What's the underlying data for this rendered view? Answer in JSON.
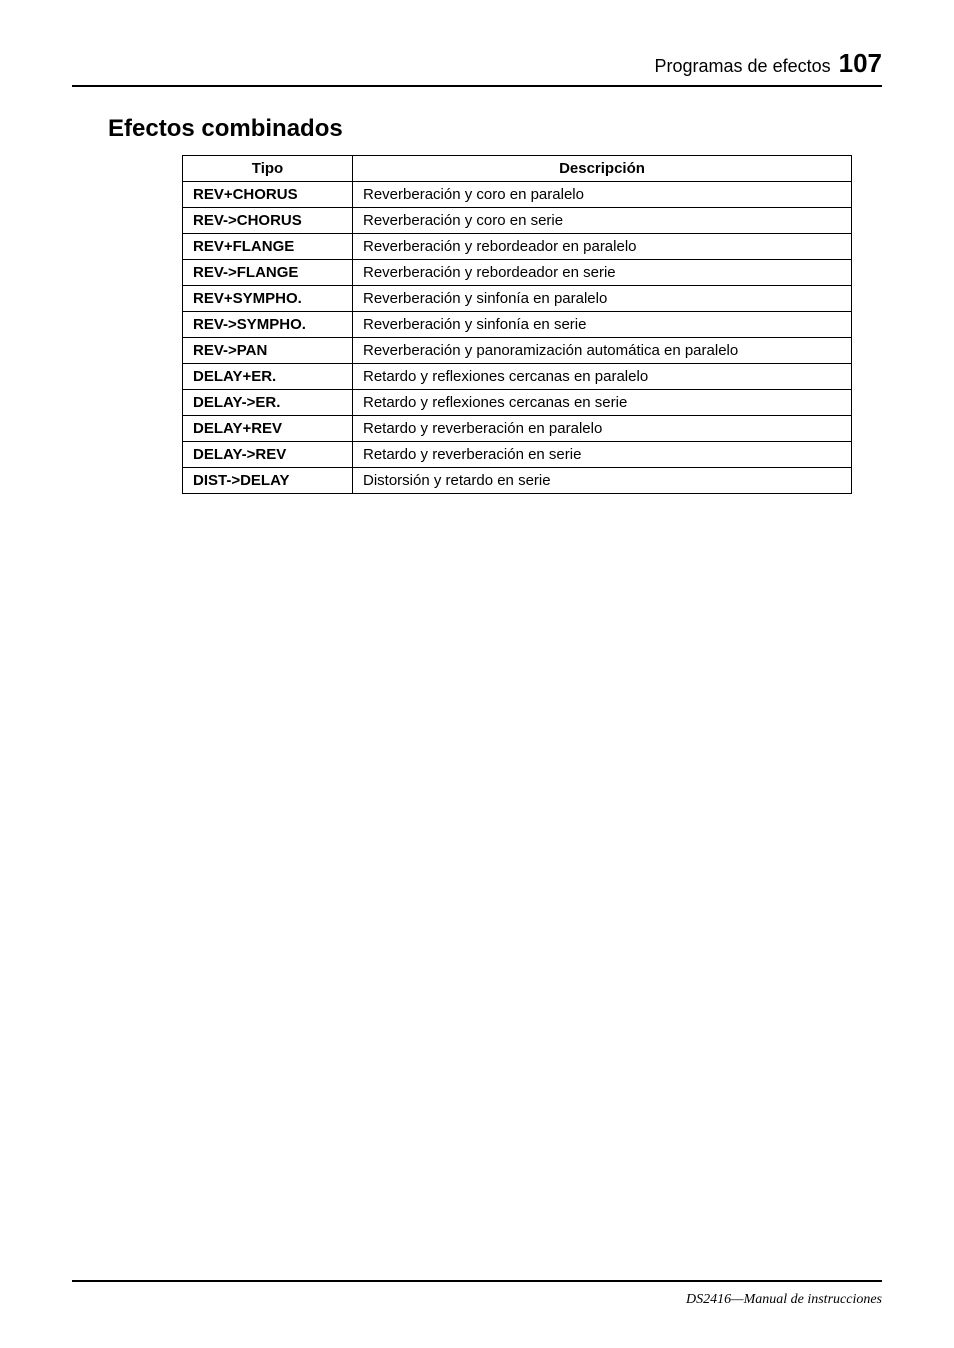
{
  "header": {
    "section": "Programas de efectos",
    "page_number": "107"
  },
  "section_title": "Efectos combinados",
  "table": {
    "columns": [
      "Tipo",
      "Descripción"
    ],
    "rows": [
      [
        "REV+CHORUS",
        "Reverberación y coro en paralelo"
      ],
      [
        "REV->CHORUS",
        "Reverberación y coro en serie"
      ],
      [
        "REV+FLANGE",
        "Reverberación y rebordeador en paralelo"
      ],
      [
        "REV->FLANGE",
        "Reverberación y rebordeador en serie"
      ],
      [
        "REV+SYMPHO.",
        "Reverberación y sinfonía en paralelo"
      ],
      [
        "REV->SYMPHO.",
        "Reverberación y sinfonía en serie"
      ],
      [
        "REV->PAN",
        "Reverberación y panoramización automática en paralelo"
      ],
      [
        "DELAY+ER.",
        "Retardo y reflexiones cercanas en paralelo"
      ],
      [
        "DELAY->ER.",
        "Retardo y reflexiones cercanas en serie"
      ],
      [
        "DELAY+REV",
        "Retardo y reverberación en paralelo"
      ],
      [
        "DELAY->REV",
        "Retardo y reverberación en serie"
      ],
      [
        "DIST->DELAY",
        "Distorsión y retardo en serie"
      ]
    ]
  },
  "footer": "DS2416—Manual de instrucciones"
}
